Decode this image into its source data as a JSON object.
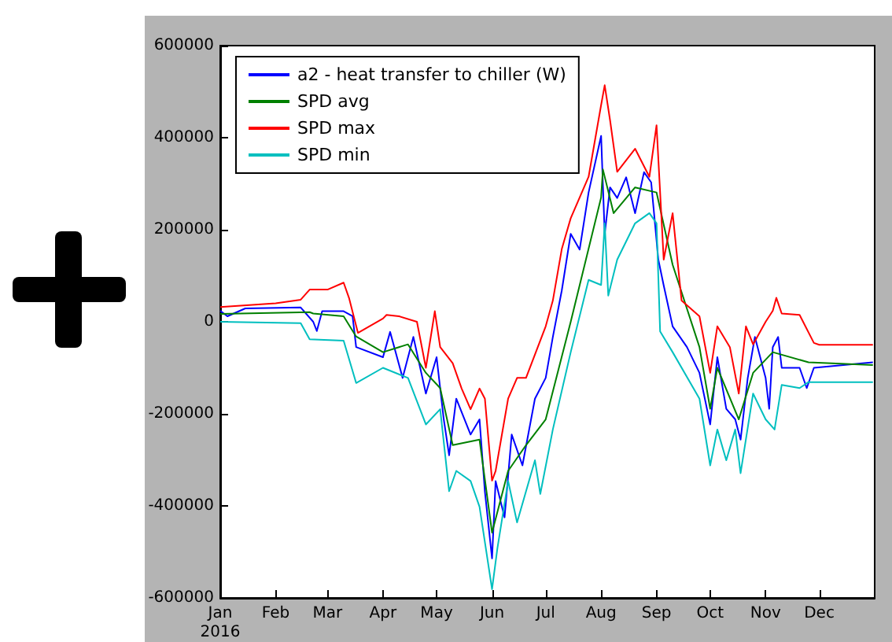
{
  "chart_data": {
    "type": "line",
    "xlim": [
      "2016-01-01",
      "2017-01-01"
    ],
    "xticks": [
      {
        "value": "2016-01-01",
        "label": "Jan\n2016"
      },
      {
        "value": "2016-02-01",
        "label": "Feb"
      },
      {
        "value": "2016-03-01",
        "label": "Mar"
      },
      {
        "value": "2016-04-01",
        "label": "Apr"
      },
      {
        "value": "2016-05-01",
        "label": "May"
      },
      {
        "value": "2016-06-01",
        "label": "Jun"
      },
      {
        "value": "2016-07-01",
        "label": "Jul"
      },
      {
        "value": "2016-08-01",
        "label": "Aug"
      },
      {
        "value": "2016-09-01",
        "label": "Sep"
      },
      {
        "value": "2016-10-01",
        "label": "Oct"
      },
      {
        "value": "2016-11-01",
        "label": "Nov"
      },
      {
        "value": "2016-12-01",
        "label": "Dec"
      }
    ],
    "ylim": [
      -600000,
      600000
    ],
    "yticks": [
      -600000,
      -400000,
      -200000,
      0,
      200000,
      400000,
      600000
    ],
    "grid": false,
    "legend": "top left",
    "marker": "none",
    "line_style": "solid",
    "series": [
      {
        "name": "a2 - heat transfer to chiller (W)",
        "color": "#0000ff",
        "x": [
          "2016-01-01",
          "2016-01-05",
          "2016-01-15",
          "2016-02-15",
          "2016-02-22",
          "2016-02-24",
          "2016-02-27",
          "2016-03-10",
          "2016-03-15",
          "2016-03-17",
          "2016-04-01",
          "2016-04-05",
          "2016-04-12",
          "2016-04-18",
          "2016-04-25",
          "2016-05-01",
          "2016-05-05",
          "2016-05-08",
          "2016-05-12",
          "2016-05-20",
          "2016-05-25",
          "2016-05-28",
          "2016-06-01",
          "2016-06-03",
          "2016-06-08",
          "2016-06-12",
          "2016-06-18",
          "2016-06-25",
          "2016-07-01",
          "2016-07-05",
          "2016-07-10",
          "2016-07-15",
          "2016-07-20",
          "2016-07-25",
          "2016-08-01",
          "2016-08-03",
          "2016-08-06",
          "2016-08-10",
          "2016-08-15",
          "2016-08-20",
          "2016-08-25",
          "2016-08-29",
          "2016-09-02",
          "2016-09-05",
          "2016-09-10",
          "2016-09-18",
          "2016-09-25",
          "2016-10-01",
          "2016-10-05",
          "2016-10-10",
          "2016-10-15",
          "2016-10-18",
          "2016-10-22",
          "2016-10-26",
          "2016-11-01",
          "2016-11-03",
          "2016-11-05",
          "2016-11-08",
          "2016-11-10",
          "2016-11-20",
          "2016-11-24",
          "2016-11-28",
          "2016-12-31"
        ],
        "values": [
          24000,
          12000,
          29000,
          31000,
          0,
          -20000,
          23000,
          23000,
          12000,
          -55000,
          -77000,
          -22000,
          -122000,
          -33000,
          -156000,
          -77000,
          -212000,
          -290000,
          -167000,
          -245000,
          -212000,
          -369000,
          -514000,
          -346000,
          -425000,
          -245000,
          -312000,
          -167000,
          -122000,
          -33000,
          68000,
          191000,
          157000,
          281000,
          404000,
          191000,
          292000,
          269000,
          314000,
          236000,
          325000,
          303000,
          135000,
          79000,
          -10000,
          -55000,
          -111000,
          -223000,
          -77000,
          -189000,
          -212000,
          -256000,
          -122000,
          -33000,
          -122000,
          -189000,
          -55000,
          -33000,
          -100000,
          -100000,
          -144000,
          -100000,
          -88000
        ]
      },
      {
        "name": "SPD avg",
        "color": "#008000",
        "x": [
          "2016-01-01",
          "2016-02-20",
          "2016-02-22",
          "2016-03-10",
          "2016-03-17",
          "2016-04-01",
          "2016-04-15",
          "2016-04-25",
          "2016-05-03",
          "2016-05-10",
          "2016-05-25",
          "2016-06-01",
          "2016-06-10",
          "2016-06-20",
          "2016-07-01",
          "2016-07-15",
          "2016-08-01",
          "2016-08-02",
          "2016-08-08",
          "2016-08-20",
          "2016-09-01",
          "2016-09-10",
          "2016-09-25",
          "2016-10-01",
          "2016-10-05",
          "2016-10-17",
          "2016-10-25",
          "2016-11-05",
          "2016-11-25",
          "2016-12-31"
        ],
        "values": [
          17000,
          21000,
          18000,
          12000,
          -32000,
          -66000,
          -49000,
          -111000,
          -144000,
          -268000,
          -256000,
          -458000,
          -324000,
          -268000,
          -212000,
          0,
          270000,
          331000,
          236000,
          292000,
          281000,
          124000,
          -55000,
          -189000,
          -100000,
          -212000,
          -111000,
          -66000,
          -88000,
          -94000
        ]
      },
      {
        "name": "SPD max",
        "color": "#ff0000",
        "x": [
          "2016-01-01",
          "2016-02-01",
          "2016-02-15",
          "2016-02-20",
          "2016-03-01",
          "2016-03-10",
          "2016-03-13",
          "2016-03-18",
          "2016-04-01",
          "2016-04-03",
          "2016-04-10",
          "2016-04-20",
          "2016-04-25",
          "2016-04-30",
          "2016-05-03",
          "2016-05-10",
          "2016-05-15",
          "2016-05-20",
          "2016-05-25",
          "2016-05-28",
          "2016-06-01",
          "2016-06-03",
          "2016-06-10",
          "2016-06-15",
          "2016-06-20",
          "2016-07-01",
          "2016-07-05",
          "2016-07-10",
          "2016-07-15",
          "2016-07-25",
          "2016-08-01",
          "2016-08-03",
          "2016-08-06",
          "2016-08-10",
          "2016-08-20",
          "2016-08-28",
          "2016-09-01",
          "2016-09-05",
          "2016-09-10",
          "2016-09-15",
          "2016-09-25",
          "2016-10-01",
          "2016-10-05",
          "2016-10-12",
          "2016-10-17",
          "2016-10-21",
          "2016-10-25",
          "2016-11-01",
          "2016-11-05",
          "2016-11-07",
          "2016-11-10",
          "2016-11-20",
          "2016-11-28",
          "2016-12-01",
          "2016-12-31"
        ],
        "values": [
          32000,
          40000,
          48000,
          70000,
          70000,
          85000,
          52000,
          -24000,
          7000,
          15000,
          12000,
          0,
          -100000,
          23000,
          -55000,
          -90000,
          -145000,
          -190000,
          -145000,
          -167000,
          -345000,
          -324000,
          -167000,
          -122000,
          -122000,
          -10000,
          46000,
          158000,
          225000,
          315000,
          471000,
          514000,
          438000,
          326000,
          376000,
          315000,
          427000,
          135000,
          236000,
          46000,
          12000,
          -111000,
          -10000,
          -55000,
          -156000,
          -10000,
          -49000,
          0,
          24000,
          52000,
          18000,
          15000,
          -46000,
          -50000,
          -50000
        ]
      },
      {
        "name": "SPD min",
        "color": "#00bfbf",
        "x": [
          "2016-01-01",
          "2016-02-15",
          "2016-02-20",
          "2016-03-10",
          "2016-03-17",
          "2016-04-01",
          "2016-04-15",
          "2016-04-25",
          "2016-05-03",
          "2016-05-08",
          "2016-05-12",
          "2016-05-20",
          "2016-05-25",
          "2016-06-01",
          "2016-06-04",
          "2016-06-10",
          "2016-06-15",
          "2016-06-25",
          "2016-06-28",
          "2016-07-05",
          "2016-07-15",
          "2016-07-25",
          "2016-08-01",
          "2016-08-03",
          "2016-08-05",
          "2016-08-10",
          "2016-08-20",
          "2016-08-28",
          "2016-09-01",
          "2016-09-03",
          "2016-09-10",
          "2016-09-25",
          "2016-10-01",
          "2016-10-05",
          "2016-10-10",
          "2016-10-15",
          "2016-10-18",
          "2016-10-25",
          "2016-11-01",
          "2016-11-06",
          "2016-11-10",
          "2016-11-20",
          "2016-11-25",
          "2016-12-31"
        ],
        "values": [
          0,
          -3000,
          -38000,
          -41000,
          -133000,
          -100000,
          -122000,
          -223000,
          -190000,
          -368000,
          -324000,
          -346000,
          -402000,
          -581000,
          -492000,
          -346000,
          -436000,
          -301000,
          -374000,
          -234000,
          -66000,
          91000,
          80000,
          214000,
          57000,
          135000,
          214000,
          236000,
          214000,
          -21000,
          -66000,
          -167000,
          -312000,
          -234000,
          -301000,
          -234000,
          -329000,
          -156000,
          -212000,
          -234000,
          -137000,
          -144000,
          -131000,
          -131000
        ]
      }
    ]
  }
}
